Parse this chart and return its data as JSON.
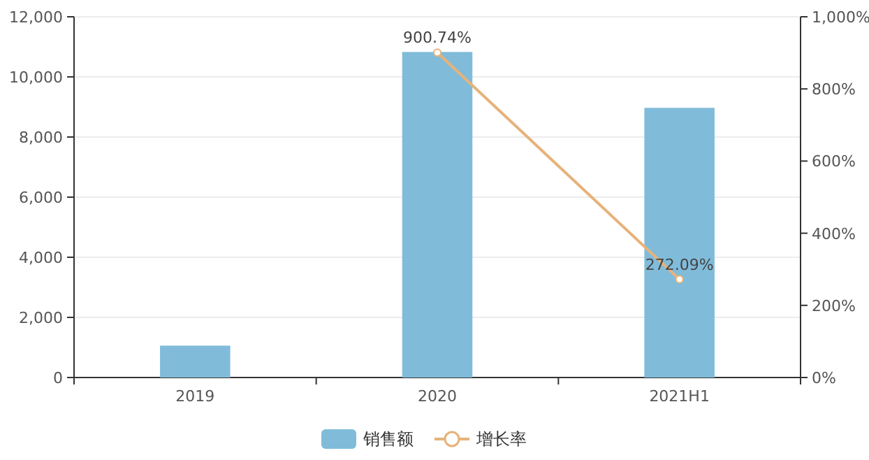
{
  "chart_data": {
    "type": "bar",
    "categories": [
      "2019",
      "2020",
      "2021H1"
    ],
    "series": [
      {
        "name": "销售额",
        "color": "#80bcda",
        "values": [
          1060,
          10830,
          8970
        ]
      },
      {
        "name": "增长率",
        "type": "line",
        "axis": "y2",
        "color": "#e6b27a",
        "marker": "circle",
        "values": [
          null,
          900.74,
          272.09
        ],
        "value_labels": [
          null,
          "900.74%",
          "272.09%"
        ]
      }
    ],
    "ylim": [
      0,
      12000
    ],
    "yticks": [
      {
        "value": 0,
        "label": "0"
      },
      {
        "value": 2000,
        "label": "2,000"
      },
      {
        "value": 4000,
        "label": "4,000"
      },
      {
        "value": 6000,
        "label": "6,000"
      },
      {
        "value": 8000,
        "label": "8,000"
      },
      {
        "value": 10000,
        "label": "10,000"
      },
      {
        "value": 12000,
        "label": "12,000"
      }
    ],
    "y2lim": [
      0,
      1000
    ],
    "y2ticks": [
      {
        "value": 0,
        "label": "0%"
      },
      {
        "value": 200,
        "label": "200%"
      },
      {
        "value": 400,
        "label": "400%"
      },
      {
        "value": 600,
        "label": "600%"
      },
      {
        "value": 800,
        "label": "800%"
      },
      {
        "value": 1000,
        "label": "1,000%"
      }
    ],
    "grid": "y",
    "legend": "bottom"
  }
}
